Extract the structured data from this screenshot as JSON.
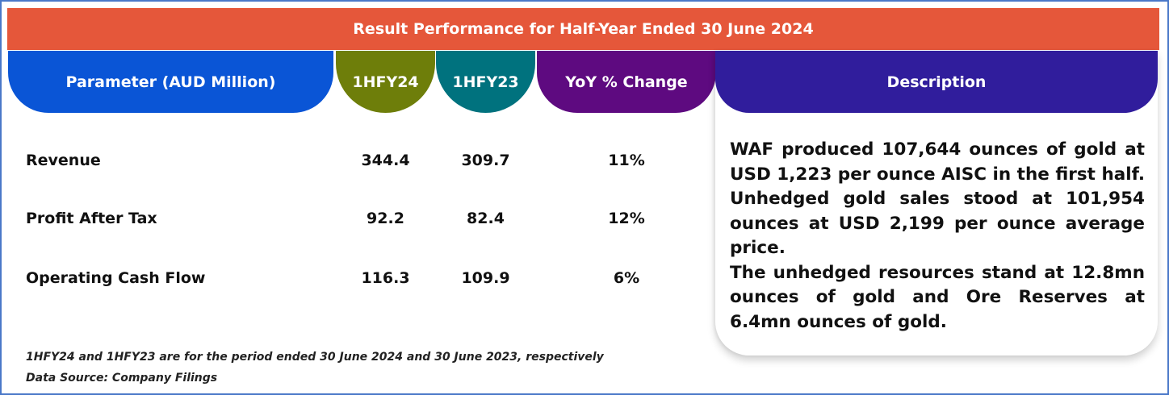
{
  "title": "Result Performance for Half-Year Ended 30 June 2024",
  "headers": {
    "parameter": "Parameter (AUD Million)",
    "h1fy24": "1HFY24",
    "h1fy23": "1HFY23",
    "yoy": "YoY % Change",
    "description": "Description"
  },
  "rows": [
    {
      "label": "Revenue",
      "h1fy24": "344.4",
      "h1fy23": "309.7",
      "yoy": "11%"
    },
    {
      "label": "Profit After Tax",
      "h1fy24": "92.2",
      "h1fy23": "82.4",
      "yoy": "12%"
    },
    {
      "label": "Operating Cash Flow",
      "h1fy24": "116.3",
      "h1fy23": "109.9",
      "yoy": "6%"
    }
  ],
  "description": {
    "para1": "WAF produced 107,644 ounces of gold at USD 1,223 per ounce AISC in the first half. Unhedged gold sales stood at 101,954 ounces at USD 2,199 per ounce average price.",
    "para2": "The unhedged resources stand at 12.8mn ounces of gold and Ore Reserves at 6.4mn ounces of gold."
  },
  "footnotes": {
    "period_note": "1HFY24 and 1HFY23 are for the period ended 30 June 2024 and 30 June 2023, respectively",
    "source": "Data Source: Company Filings"
  },
  "colors": {
    "title_bar": "#e5573a",
    "parameter": "#0a55d6",
    "h1fy24": "#6e7e0a",
    "h1fy23": "#00727e",
    "yoy": "#5e0a80",
    "description": "#301d9c"
  }
}
